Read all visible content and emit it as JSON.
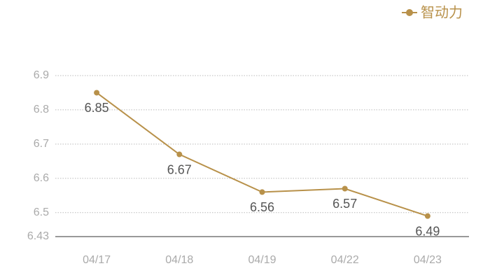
{
  "chart_data": {
    "type": "line",
    "categories": [
      "04/17",
      "04/18",
      "04/19",
      "04/22",
      "04/23"
    ],
    "series": [
      {
        "name": "智动力",
        "color": "#b8914a",
        "values": [
          6.85,
          6.67,
          6.56,
          6.57,
          6.49
        ]
      }
    ],
    "ylim": [
      6.43,
      6.9
    ],
    "yticks": [
      6.43,
      6.5,
      6.6,
      6.7,
      6.8,
      6.9
    ],
    "grid": true,
    "legend": "top-right"
  }
}
